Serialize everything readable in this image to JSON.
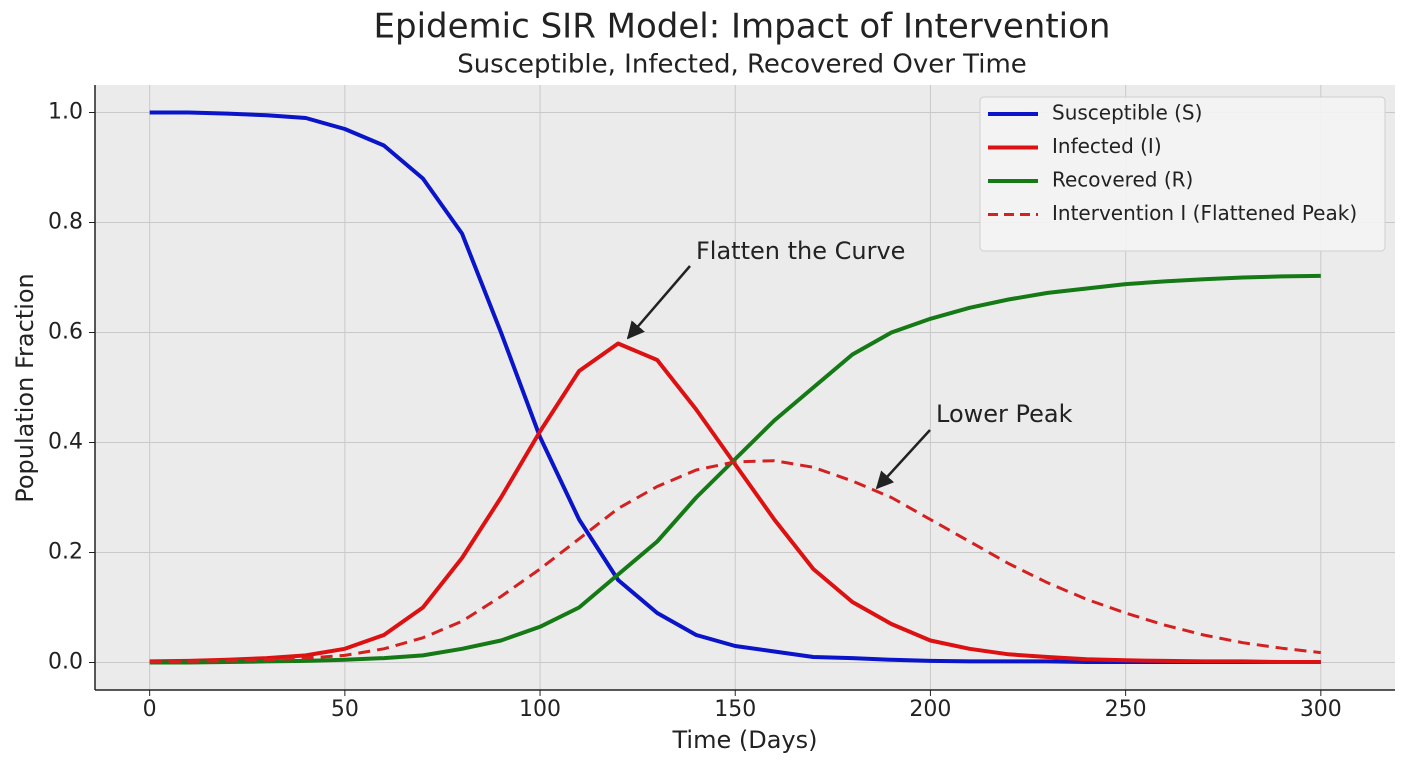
{
  "chart_data": {
    "type": "line",
    "title": "Epidemic SIR Model: Impact of Intervention",
    "subtitle": "Susceptible, Infected, Recovered Over Time",
    "x_label": "Time (Days)",
    "y_label": "Population Fraction",
    "x": [
      0,
      10,
      20,
      30,
      40,
      50,
      60,
      70,
      80,
      90,
      100,
      110,
      120,
      130,
      140,
      150,
      160,
      170,
      180,
      190,
      200,
      210,
      220,
      230,
      240,
      250,
      260,
      270,
      280,
      290,
      300
    ],
    "series": [
      {
        "name": "Susceptible (S)",
        "color": "#0a14c8",
        "dashed": false,
        "values": [
          1.0,
          1.0,
          0.998,
          0.995,
          0.99,
          0.97,
          0.94,
          0.88,
          0.78,
          0.6,
          0.41,
          0.26,
          0.15,
          0.09,
          0.05,
          0.03,
          0.02,
          0.01,
          0.008,
          0.005,
          0.003,
          0.002,
          0.002,
          0.002,
          0.001,
          0.001,
          0.001,
          0.001,
          0.001,
          0.001,
          0.001
        ]
      },
      {
        "name": "Infected (I)",
        "color": "#dd1111",
        "dashed": false,
        "values": [
          0.002,
          0.003,
          0.005,
          0.008,
          0.013,
          0.025,
          0.05,
          0.1,
          0.19,
          0.3,
          0.42,
          0.53,
          0.58,
          0.55,
          0.46,
          0.36,
          0.26,
          0.17,
          0.11,
          0.07,
          0.04,
          0.025,
          0.015,
          0.01,
          0.006,
          0.004,
          0.003,
          0.002,
          0.002,
          0.001,
          0.001
        ]
      },
      {
        "name": "Recovered (R)",
        "color": "#157a15",
        "dashed": false,
        "values": [
          0,
          0,
          0.001,
          0.002,
          0.003,
          0.005,
          0.008,
          0.013,
          0.025,
          0.04,
          0.065,
          0.1,
          0.16,
          0.22,
          0.3,
          0.37,
          0.44,
          0.5,
          0.56,
          0.6,
          0.625,
          0.645,
          0.66,
          0.672,
          0.68,
          0.688,
          0.693,
          0.697,
          0.7,
          0.702,
          0.703
        ]
      },
      {
        "name": "Intervention I (Flattened Peak)",
        "color": "#d42020",
        "dashed": true,
        "values": [
          0.001,
          0.002,
          0.003,
          0.005,
          0.008,
          0.013,
          0.025,
          0.045,
          0.075,
          0.12,
          0.17,
          0.225,
          0.28,
          0.32,
          0.35,
          0.365,
          0.367,
          0.355,
          0.33,
          0.3,
          0.26,
          0.22,
          0.18,
          0.145,
          0.115,
          0.09,
          0.068,
          0.05,
          0.036,
          0.026,
          0.018
        ]
      }
    ],
    "annotations": [
      "Flatten the Curve",
      "Lower Peak"
    ],
    "xlim": [
      -14,
      319
    ],
    "ylim": [
      -0.05,
      1.05
    ],
    "xticks": [
      0,
      50,
      100,
      150,
      200,
      250,
      300
    ],
    "yticks": [
      {
        "value": 0,
        "label": "0.0"
      },
      0.2,
      0.4,
      0.6,
      0.8,
      {
        "value": 1,
        "label": "1.0"
      }
    ],
    "grid": true,
    "legend": "upper right"
  }
}
